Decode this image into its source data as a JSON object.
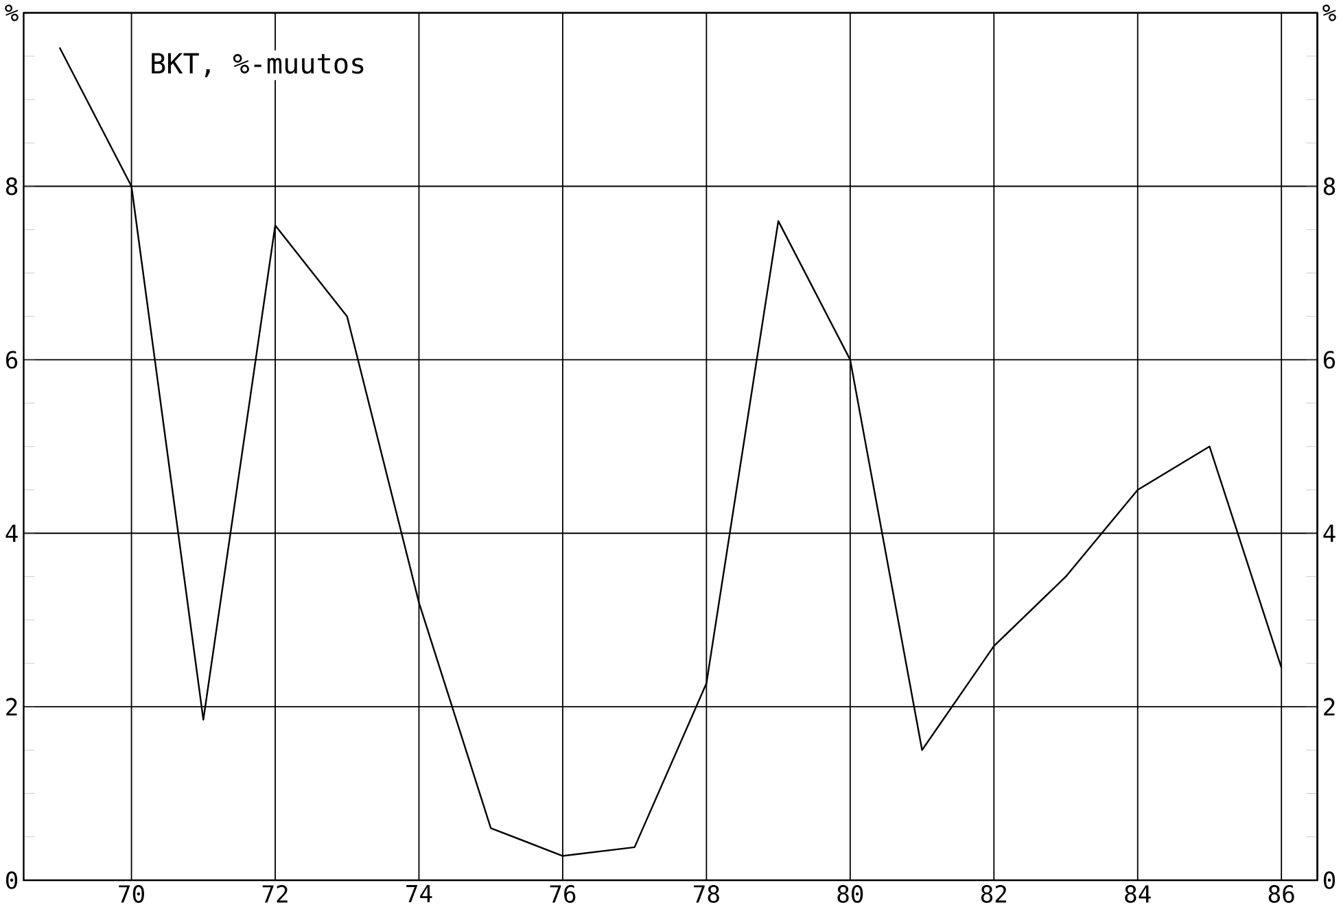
{
  "chart_data": {
    "type": "line",
    "title": "BKT, %-muutos",
    "x": [
      69,
      70,
      71,
      72,
      73,
      74,
      75,
      76,
      77,
      78,
      79,
      80,
      81,
      82,
      83,
      84,
      85,
      86
    ],
    "values": [
      9.6,
      8.0,
      1.85,
      7.55,
      6.5,
      3.2,
      0.6,
      0.28,
      0.38,
      2.27,
      7.6,
      6.0,
      1.5,
      2.7,
      3.5,
      4.5,
      5.0,
      2.45
    ],
    "color": "#000000",
    "xlim": [
      68.5,
      86.5
    ],
    "xticks": [
      70,
      72,
      74,
      76,
      78,
      80,
      82,
      84,
      86
    ],
    "ylim": [
      0,
      10
    ],
    "yticks": [
      0,
      2,
      4,
      6,
      8,
      {
        "value": 10,
        "label": "%"
      }
    ],
    "y2lim": [
      0,
      10
    ],
    "y2ticks": [
      0,
      2,
      4,
      6,
      8,
      {
        "value": 10,
        "label": "%"
      }
    ],
    "grid": true,
    "marker": "none",
    "line_style": "solid"
  }
}
